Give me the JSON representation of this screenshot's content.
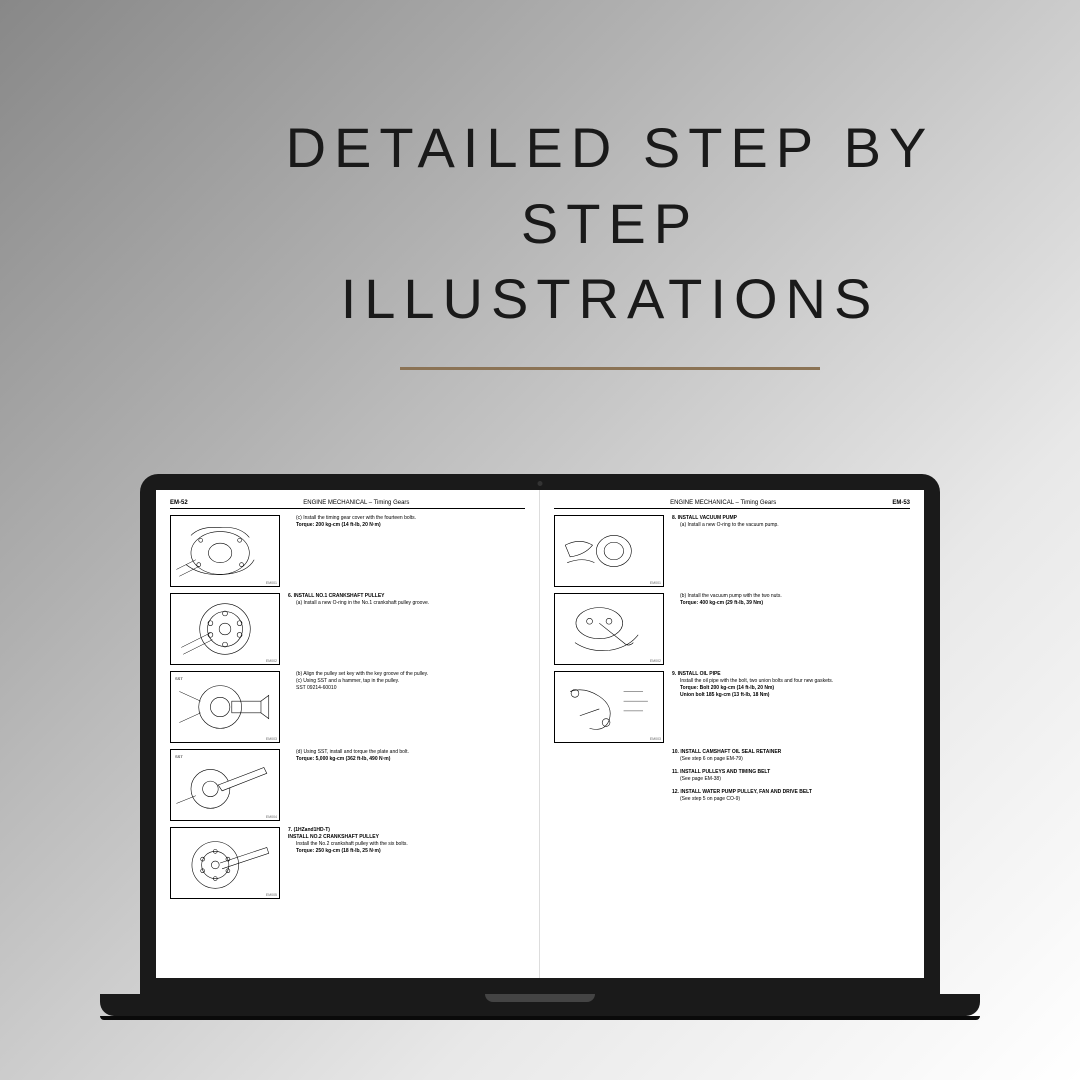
{
  "heading": {
    "line1": "DETAILED STEP BY STEP",
    "line2": "ILLUSTRATIONS"
  },
  "colors": {
    "heading_color": "#1a1a1a",
    "underline_color": "#8b7355",
    "laptop_frame": "#1a1a1a",
    "page_bg": "#ffffff"
  },
  "leftPage": {
    "pageNum": "EM-52",
    "section": "ENGINE MECHANICAL – Timing Gears",
    "steps": [
      {
        "fig": true,
        "text": "(c)  Install the timing gear cover with the fourteen bolts.",
        "torque": "Torque:   200 kg-cm (14 ft-lb, 20 N·m)"
      },
      {
        "fig": true,
        "num": "6.",
        "title": "INSTALL NO.1 CRANKSHAFT PULLEY",
        "text": "(a)  Install a new O-ring in the No.1 crankshaft pulley groove."
      },
      {
        "fig": true,
        "sst": "SST",
        "text": "(b)  Align the pulley set key with the key groove of the pulley.\n(c)  Using SST and a hammer, tap in the pulley.\nSST 09214-60010"
      },
      {
        "fig": true,
        "sst": "SST",
        "text": "(d)  Using SST, install and torque the plate and bolt.",
        "torque": "Torque:   5,000 kg-cm (362 ft-lb, 490 N·m)"
      },
      {
        "fig": true,
        "num": "7.",
        "pretitle": "(1HZand1HD-T)",
        "title": "INSTALL NO.2 CRANKSHAFT PULLEY",
        "text": "Install the No.2 crankshaft pulley with the six bolts.",
        "torque": "Torque:   250 kg-cm (18 ft-lb, 25 N·m)"
      }
    ]
  },
  "rightPage": {
    "pageNum": "EM-53",
    "section": "ENGINE MECHANICAL – Timing Gears",
    "steps": [
      {
        "fig": true,
        "num": "8.",
        "title": "INSTALL VACUUM PUMP",
        "text": "(a)  Install a new O-ring to the vacuum pump."
      },
      {
        "fig": true,
        "text": "(b)  Install the vacuum pump with the two nuts.",
        "torque": "Torque:   400 kg-cm (29 ft-lb, 39 Nm)"
      },
      {
        "fig": true,
        "num": "9.",
        "title": "INSTALL OIL PIPE",
        "text": "Install the oil pipe with the bolt, two union bolts and four new gaskets.",
        "torque": "Torque:   Bolt          200 kg-cm (14 ft-lb, 20 Nm)\n               Union bolt   185 kg-cm (13 ft-lb, 18 Nm)"
      },
      {
        "fig": false,
        "num": "10.",
        "title": "INSTALL CAMSHAFT OIL SEAL RETAINER",
        "text": "(See step 6 on page EM-79)"
      },
      {
        "fig": false,
        "num": "11.",
        "title": "INSTALL PULLEYS AND TIMING BELT",
        "text": "(See page EM-38)"
      },
      {
        "fig": false,
        "num": "12.",
        "title": "INSTALL WATER PUMP PULLEY, FAN AND DRIVE BELT",
        "text": "(See step 5 on page CO-9)"
      }
    ]
  }
}
